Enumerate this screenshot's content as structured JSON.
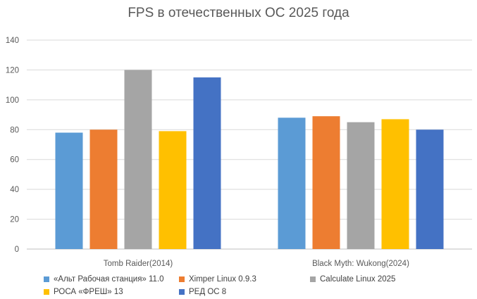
{
  "chart_data": {
    "type": "bar",
    "title": "FPS в отечественных ОС 2025 года",
    "xlabel": "",
    "ylabel": "",
    "ylim": [
      0,
      140
    ],
    "yticks": [
      0,
      20,
      40,
      60,
      80,
      100,
      120,
      140
    ],
    "grid": true,
    "legend_position": "bottom",
    "categories": [
      "Tomb Raider(2014)",
      "Black Myth: Wukong(2024)"
    ],
    "series": [
      {
        "name": "«Альт Рабочая станция» 11.0",
        "color": "#5B9BD5",
        "values": [
          78,
          88
        ]
      },
      {
        "name": "Ximper Linux 0.9.3",
        "color": "#ED7D31",
        "values": [
          80,
          89
        ]
      },
      {
        "name": "Calculate Linux 2025",
        "color": "#A5A5A5",
        "values": [
          120,
          85
        ]
      },
      {
        "name": "РОСА «ФРЕШ» 13",
        "color": "#FFC000",
        "values": [
          79,
          87
        ]
      },
      {
        "name": "РЕД ОС 8",
        "color": "#4472C4",
        "values": [
          115,
          80
        ]
      }
    ]
  }
}
